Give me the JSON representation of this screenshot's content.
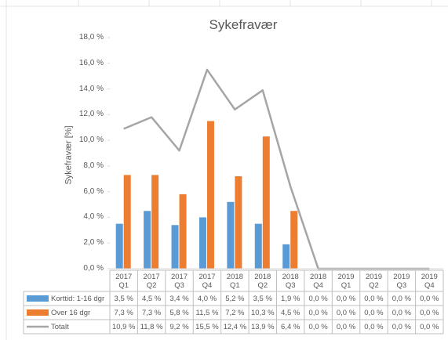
{
  "chart_data": {
    "type": "bar",
    "title": "Sykefravær",
    "y_label": "Sykefravær [%]",
    "categories": [
      "2017 Q1",
      "2017 Q2",
      "2017 Q3",
      "2017 Q4",
      "2018 Q1",
      "2018 Q2",
      "2018 Q3",
      "2018 Q4",
      "2019 Q1",
      "2019 Q2",
      "2019 Q3",
      "2019 Q4"
    ],
    "series": [
      {
        "name": "Korttid: 1-16 dgr",
        "color": "#5b9bd5",
        "kind": "bar",
        "values": [
          3.5,
          4.5,
          3.4,
          4.0,
          5.2,
          3.5,
          1.9,
          0,
          0,
          0,
          0,
          0
        ],
        "value_labels": [
          "3,5 %",
          "4,5 %",
          "3,4 %",
          "4,0 %",
          "5,2 %",
          "3,5 %",
          "1,9 %",
          "0,0 %",
          "0,0 %",
          "0,0 %",
          "0,0 %",
          "0,0 %"
        ]
      },
      {
        "name": "Over 16 dgr",
        "color": "#ed7d31",
        "kind": "bar",
        "values": [
          7.3,
          7.3,
          5.8,
          11.5,
          7.2,
          10.3,
          4.5,
          0,
          0,
          0,
          0,
          0
        ],
        "value_labels": [
          "7,3 %",
          "7,3 %",
          "5,8 %",
          "11,5 %",
          "7,2 %",
          "10,3 %",
          "4,5 %",
          "0,0 %",
          "0,0 %",
          "0,0 %",
          "0,0 %",
          "0,0 %"
        ]
      },
      {
        "name": "Totalt",
        "color": "#a5a5a5",
        "kind": "line",
        "values": [
          10.9,
          11.8,
          9.2,
          15.5,
          12.4,
          13.9,
          6.4,
          0,
          0,
          0,
          0,
          0
        ],
        "value_labels": [
          "10,9 %",
          "11,8 %",
          "9,2 %",
          "15,5 %",
          "12,4 %",
          "13,9 %",
          "6,4 %",
          "0,0 %",
          "0,0 %",
          "0,0 %",
          "0,0 %",
          "0,0 %"
        ]
      }
    ],
    "ylim": [
      0,
      18
    ],
    "yticks": [
      {
        "value": 0,
        "label": "0,0 %"
      },
      {
        "value": 2,
        "label": "2,0 %"
      },
      {
        "value": 4,
        "label": "4,0 %"
      },
      {
        "value": 6,
        "label": "6,0 %"
      },
      {
        "value": 8,
        "label": "8,0 %"
      },
      {
        "value": 10,
        "label": "10,0 %"
      },
      {
        "value": 12,
        "label": "12,0 %"
      },
      {
        "value": 14,
        "label": "14,0 %"
      },
      {
        "value": 16,
        "label": "16,0 %"
      },
      {
        "value": 18,
        "label": "18,0 %"
      }
    ],
    "grid": false
  }
}
